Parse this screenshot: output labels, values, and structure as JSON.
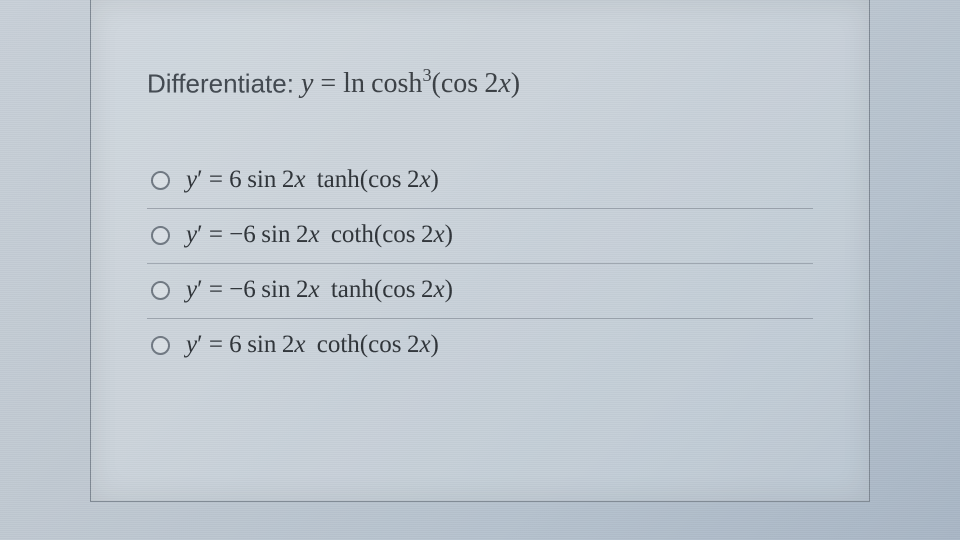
{
  "question": {
    "label": "Differentiate:",
    "equation_html": "<span class='math'>y</span> <span class='rm'>=</span> <span class='rm'>ln</span><span class='thin'></span><span class='rm'>cosh</span><sup class='rm'>3</sup><span class='rm'>(</span><span class='rm'>cos</span><span class='thin'></span><span class='rm'>2</span><span class='math'>x</span><span class='rm'>)</span>"
  },
  "options": [
    {
      "id": "opt-a",
      "html": "<span class='y'>y</span><span class='prime'>&prime;</span> = 6<span class='thin'></span>sin<span class='thin'></span>2<span class='math'>x</span><span class='med'></span>tanh(cos<span class='thin'></span>2<span class='math'>x</span>)"
    },
    {
      "id": "opt-b",
      "html": "<span class='y'>y</span><span class='prime'>&prime;</span> = &minus;6<span class='thin'></span>sin<span class='thin'></span>2<span class='math'>x</span><span class='med'></span>coth(cos<span class='thin'></span>2<span class='math'>x</span>)"
    },
    {
      "id": "opt-c",
      "html": "<span class='y'>y</span><span class='prime'>&prime;</span> = &minus;6<span class='thin'></span>sin<span class='thin'></span>2<span class='math'>x</span><span class='med'></span>tanh(cos<span class='thin'></span>2<span class='math'>x</span>)"
    },
    {
      "id": "opt-d",
      "html": "<span class='y'>y</span><span class='prime'>&prime;</span> = 6<span class='thin'></span>sin<span class='thin'></span>2<span class='math'>x</span><span class='med'></span>coth(cos<span class='thin'></span>2<span class='math'>x</span>)"
    }
  ],
  "colors": {
    "text": "#2e3338",
    "border": "#7d8792",
    "radio_border": "#6f7882"
  }
}
